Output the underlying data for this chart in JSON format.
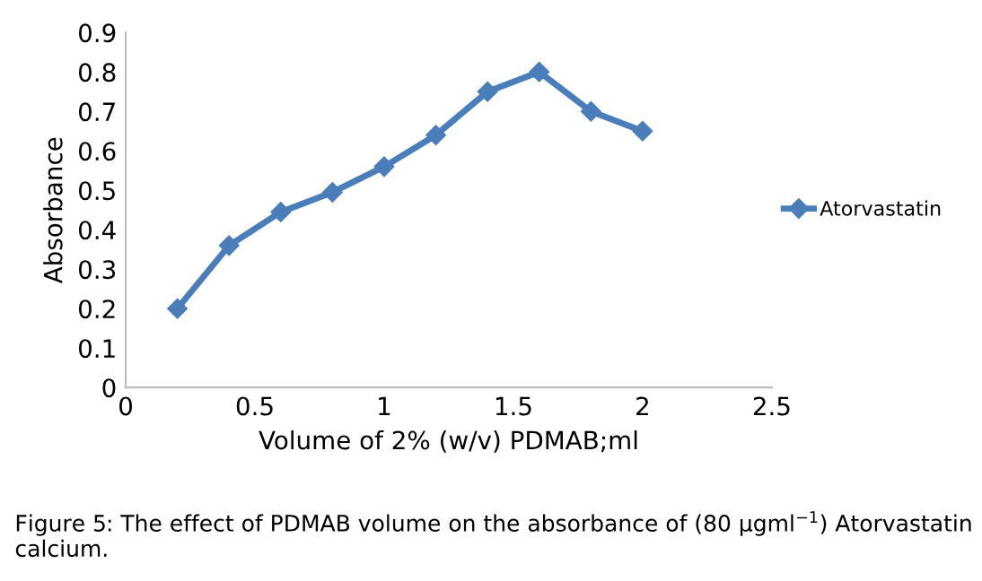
{
  "chart_data": {
    "type": "line",
    "xlabel": "Volume of 2% (w/v) PDMAB;ml",
    "ylabel": "Absorbance",
    "x": [
      0.2,
      0.4,
      0.6,
      0.8,
      1.0,
      1.2,
      1.4,
      1.6,
      1.8,
      2.0
    ],
    "series": [
      {
        "name": "Atorvastatin",
        "color": "#4a7ebb",
        "values": [
          0.2,
          0.36,
          0.445,
          0.495,
          0.56,
          0.64,
          0.75,
          0.8,
          0.7,
          0.65
        ]
      }
    ],
    "xlim": [
      0,
      2.5
    ],
    "xticks": [
      0,
      0.5,
      1,
      1.5,
      2,
      2.5
    ],
    "ylim": [
      0,
      0.9
    ],
    "yticks": [
      0,
      0.1,
      0.2,
      0.3,
      0.4,
      0.5,
      0.6,
      0.7,
      0.8,
      0.9
    ],
    "grid": false,
    "legend": "right",
    "marker": "diamond",
    "line_style": "solid",
    "annotations": [
      "Figure 5: The effect of PDMAB volume on the absorbance of (80 μgml$^{−1}$) Atorvastatin calcium."
    ]
  }
}
